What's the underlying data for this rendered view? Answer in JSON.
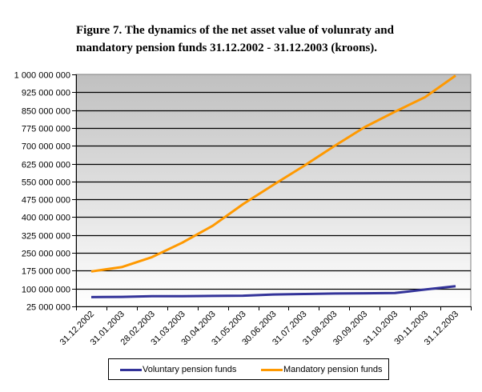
{
  "chart_data": {
    "type": "line",
    "title_lines": [
      "Figure 7. The dynamics of the net asset value of volunraty and",
      "mandatory pension funds 31.12.2002 - 31.12.2003 (kroons)."
    ],
    "xlabel": "",
    "ylabel": "",
    "categories": [
      "31.12.2002",
      "31.01.2003",
      "28.02.2003",
      "31.03.2003",
      "30.04.2003",
      "31.05.2003",
      "30.06.2003",
      "31.07.2003",
      "31.08.2003",
      "30.09.2003",
      "31.10.2003",
      "30.11.2003",
      "31.12.2003"
    ],
    "ylim": [
      25000000,
      1000000000
    ],
    "ytick_step": 75000000,
    "ytick_labels": [
      "25 000 000",
      "100 000 000",
      "175 000 000",
      "250 000 000",
      "325 000 000",
      "400 000 000",
      "475 000 000",
      "550 000 000",
      "625 000 000",
      "700 000 000",
      "775 000 000",
      "850 000 000",
      "925 000 000",
      "1 000 000 000"
    ],
    "grid": true,
    "legend_position": "bottom",
    "series": [
      {
        "name": "Voluntary pension funds",
        "color": "#333399",
        "values": [
          64000000,
          65000000,
          68000000,
          68000000,
          69000000,
          70000000,
          75000000,
          77000000,
          79000000,
          80000000,
          81000000,
          96000000,
          110000000
        ]
      },
      {
        "name": "Mandatory pension funds",
        "color": "#FF9900",
        "values": [
          172000000,
          190000000,
          232000000,
          293000000,
          364000000,
          455000000,
          536000000,
          615000000,
          698000000,
          778000000,
          843000000,
          905000000,
          995000000
        ]
      }
    ]
  }
}
